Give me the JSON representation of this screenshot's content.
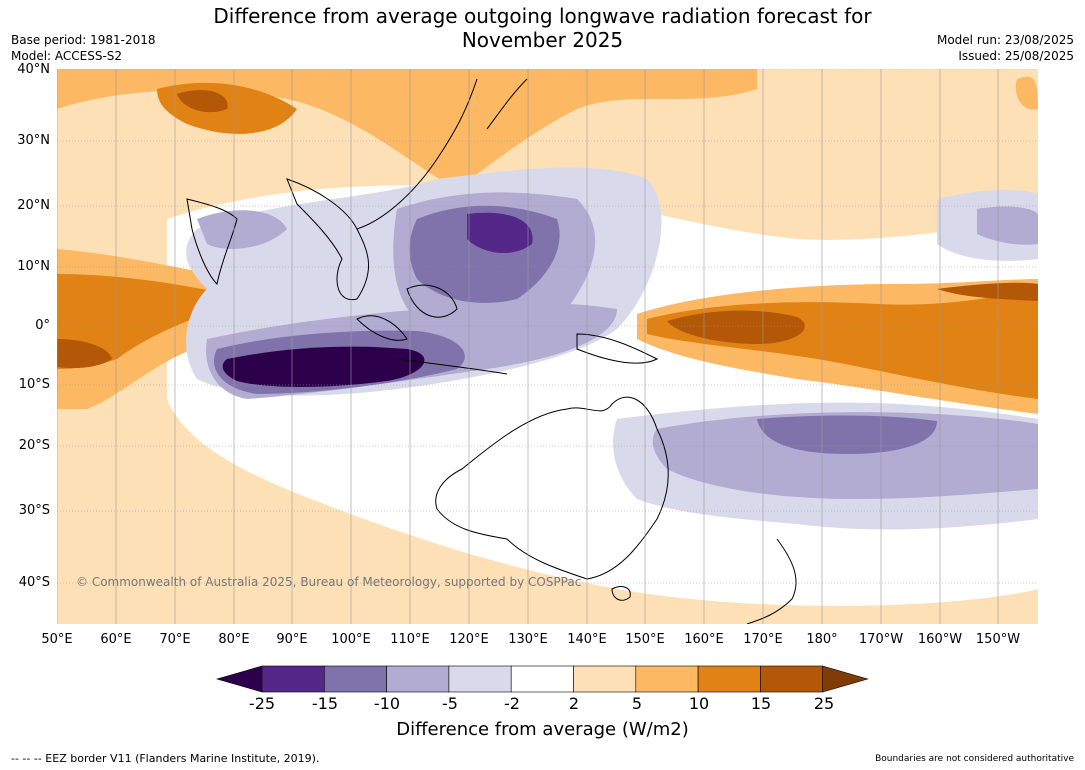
{
  "title_line1": "Difference from average outgoing longwave radiation forecast for",
  "title_line2": "November 2025",
  "base_period": "Base period: 1981-2018",
  "model": "Model: ACCESS-S2",
  "model_run": "Model run: 23/08/2025",
  "issued": "Issued: 25/08/2025",
  "copyright": "© Commonwealth of Australia 2025, Bureau of Meteorology, supported by COSPPac",
  "lat_labels": [
    "40°N",
    "30°N",
    "20°N",
    "10°N",
    "0°",
    "10°S",
    "20°S",
    "30°S",
    "40°S"
  ],
  "lon_labels": [
    "50°E",
    "60°E",
    "70°E",
    "80°E",
    "90°E",
    "100°E",
    "110°E",
    "120°E",
    "130°E",
    "140°E",
    "150°E",
    "160°E",
    "170°E",
    "180°",
    "170°W",
    "160°W",
    "150°W"
  ],
  "colorbar": {
    "ticks": [
      "-25",
      "-15",
      "-10",
      "-5",
      "-2",
      "2",
      "5",
      "10",
      "15",
      "25"
    ],
    "colors": [
      "#2d004b",
      "#542788",
      "#8073ac",
      "#b2abd2",
      "#d8daeb",
      "#ffffff",
      "#fee0b6",
      "#fdb863",
      "#e08214",
      "#b35806",
      "#7f3b08"
    ],
    "title": "Difference from average (W/m2)"
  },
  "footer_left": "--  --  -- EEZ border V11 (Flanders Marine Institute, 2019).",
  "footer_right": "Boundaries are not considered authoritative"
}
